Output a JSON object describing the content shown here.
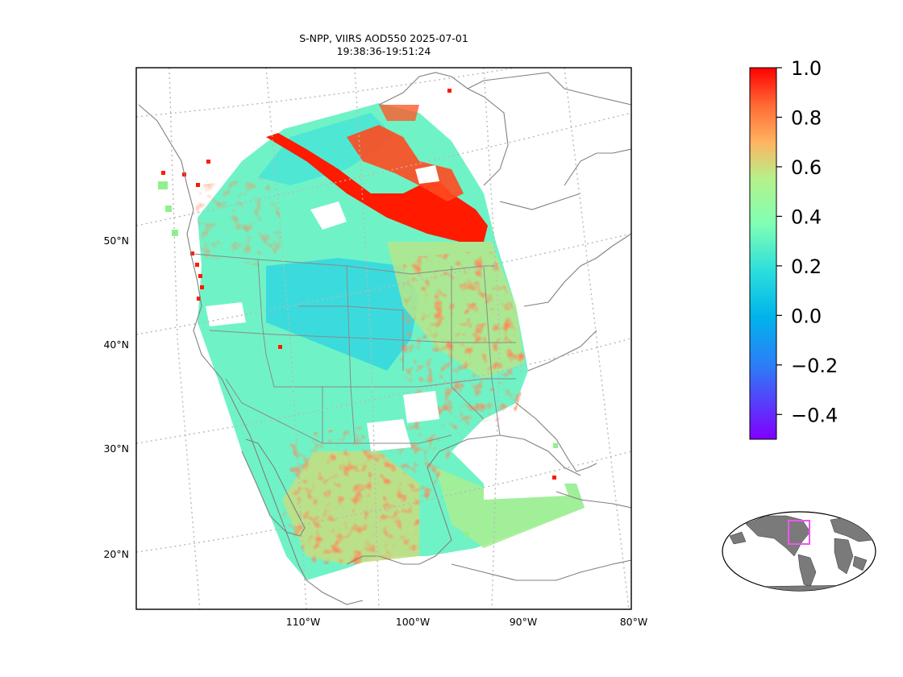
{
  "title": {
    "line1": "S-NPP, VIIRS AOD550 2025-07-01",
    "line2": "19:38:36-19:51:24"
  },
  "map": {
    "projection": "lambert-conformal",
    "gridlines": "dotted",
    "lat_labels": [
      "50°N",
      "40°N",
      "30°N",
      "20°N"
    ],
    "lon_labels": [
      "110°W",
      "100°W",
      "90°W",
      "80°W"
    ],
    "coastline_color": "#808080",
    "gridline_color": "#b0b0b0"
  },
  "colorbar": {
    "colormap": "rainbow",
    "vmin": -0.5,
    "vmax": 1.0,
    "tick_values": [
      1.0,
      0.8,
      0.6,
      0.4,
      0.2,
      0.0,
      -0.2,
      -0.4
    ],
    "tick_labels": [
      "1.0",
      "0.8",
      "0.6",
      "0.4",
      "0.2",
      "0.0",
      "−0.2",
      "−0.4"
    ]
  },
  "inset": {
    "description_icon": "globe-inset",
    "land_color": "#7a7a7a",
    "ocean_color": "#ffffff",
    "box_color": "#ee55ee"
  }
}
